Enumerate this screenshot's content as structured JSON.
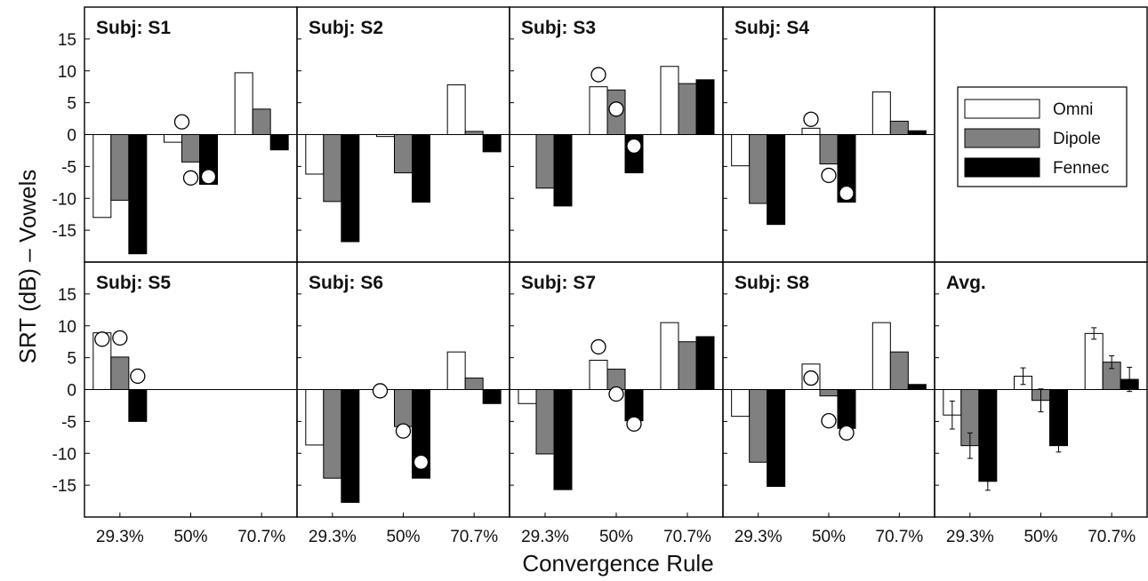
{
  "chart_data": {
    "type": "bar",
    "ylabel": "SRT (dB) – Vowels",
    "xlabel": "Convergence Rule",
    "categories": [
      "29.3%",
      "50%",
      "70.7%"
    ],
    "ylim": [
      -20,
      20
    ],
    "yticks": [
      -15,
      -10,
      -5,
      0,
      5,
      10,
      15
    ],
    "grid": false,
    "legend": {
      "placement": "top-right panel",
      "entries": [
        {
          "name": "Omni",
          "color": "#ffffff"
        },
        {
          "name": "Dipole",
          "color": "#808080"
        },
        {
          "name": "Fennec",
          "color": "#000000"
        }
      ]
    },
    "series_colors": {
      "Omni": "#ffffff",
      "Dipole": "#808080",
      "Fennec": "#000000"
    },
    "panels": [
      {
        "title": "Subj: S1",
        "series": [
          {
            "name": "Omni",
            "values": [
              -13.0,
              -1.2,
              9.7
            ]
          },
          {
            "name": "Dipole",
            "values": [
              -10.3,
              -4.3,
              4.0
            ]
          },
          {
            "name": "Fennec",
            "values": [
              -18.7,
              -7.8,
              -2.4
            ]
          }
        ],
        "markers": [
          {
            "category": "50%",
            "position": "Omni-Dipole",
            "value": 2.0,
            "fill": "white"
          },
          {
            "category": "50%",
            "position": "Dipole",
            "value": -6.8,
            "fill": "white"
          },
          {
            "category": "50%",
            "position": "Fennec",
            "value": -6.6,
            "fill": "white"
          }
        ]
      },
      {
        "title": "Subj: S2",
        "series": [
          {
            "name": "Omni",
            "values": [
              -6.2,
              -0.3,
              7.8
            ]
          },
          {
            "name": "Dipole",
            "values": [
              -10.5,
              -6.0,
              0.5
            ]
          },
          {
            "name": "Fennec",
            "values": [
              -16.8,
              -10.6,
              -2.7
            ]
          }
        ],
        "markers": []
      },
      {
        "title": "Subj: S3",
        "series": [
          {
            "name": "Omni",
            "values": [
              0,
              7.5,
              10.7
            ]
          },
          {
            "name": "Dipole",
            "values": [
              -8.4,
              7.0,
              8.0
            ]
          },
          {
            "name": "Fennec",
            "values": [
              -11.2,
              -6.0,
              8.6
            ]
          }
        ],
        "markers": [
          {
            "category": "50%",
            "position": "Omni",
            "value": 9.4,
            "fill": "white"
          },
          {
            "category": "50%",
            "position": "Dipole",
            "value": 4.0,
            "fill": "white"
          },
          {
            "category": "50%",
            "position": "Fennec",
            "value": -1.8,
            "fill": "white"
          }
        ]
      },
      {
        "title": "Subj: S4",
        "series": [
          {
            "name": "Omni",
            "values": [
              -4.9,
              1.0,
              6.7
            ]
          },
          {
            "name": "Dipole",
            "values": [
              -10.8,
              -4.6,
              2.1
            ]
          },
          {
            "name": "Fennec",
            "values": [
              -14.1,
              -10.6,
              0.6
            ]
          }
        ],
        "markers": [
          {
            "category": "50%",
            "position": "Omni",
            "value": 2.4,
            "fill": "white"
          },
          {
            "category": "50%",
            "position": "Dipole",
            "value": -6.4,
            "fill": "white"
          },
          {
            "category": "50%",
            "position": "Fennec",
            "value": -9.2,
            "fill": "white"
          }
        ]
      },
      {
        "title": "",
        "series": [],
        "markers": [],
        "is_legend": true
      },
      {
        "title": "Subj: S5",
        "series": [
          {
            "name": "Omni",
            "values": [
              8.9,
              0,
              0
            ]
          },
          {
            "name": "Dipole",
            "values": [
              5.1,
              0,
              0
            ]
          },
          {
            "name": "Fennec",
            "values": [
              -5.0,
              0,
              0
            ]
          }
        ],
        "markers": [
          {
            "category": "29.3%",
            "position": "Omni",
            "value": 7.9,
            "fill": "white"
          },
          {
            "category": "29.3%",
            "position": "Dipole",
            "value": 8.1,
            "fill": "white"
          },
          {
            "category": "29.3%",
            "position": "Fennec",
            "value": 2.1,
            "fill": "white"
          }
        ]
      },
      {
        "title": "Subj: S6",
        "series": [
          {
            "name": "Omni",
            "values": [
              -8.7,
              0,
              5.9
            ]
          },
          {
            "name": "Dipole",
            "values": [
              -13.9,
              -5.8,
              1.8
            ]
          },
          {
            "name": "Fennec",
            "values": [
              -17.7,
              -13.9,
              -2.2
            ]
          }
        ],
        "markers": [
          {
            "category": "50%",
            "position": "Omni-left",
            "value": -0.2,
            "fill": "white"
          },
          {
            "category": "50%",
            "position": "Dipole",
            "value": -6.5,
            "fill": "white"
          },
          {
            "category": "50%",
            "position": "Fennec",
            "value": -11.4,
            "fill": "white"
          }
        ]
      },
      {
        "title": "Subj: S7",
        "series": [
          {
            "name": "Omni",
            "values": [
              -2.2,
              4.6,
              10.5
            ]
          },
          {
            "name": "Dipole",
            "values": [
              -10.1,
              3.2,
              7.5
            ]
          },
          {
            "name": "Fennec",
            "values": [
              -15.7,
              -4.9,
              8.3
            ]
          }
        ],
        "markers": [
          {
            "category": "50%",
            "position": "Omni",
            "value": 6.7,
            "fill": "white"
          },
          {
            "category": "50%",
            "position": "Dipole",
            "value": -0.7,
            "fill": "white"
          },
          {
            "category": "50%",
            "position": "Fennec",
            "value": -5.4,
            "fill": "white"
          }
        ]
      },
      {
        "title": "Subj: S8",
        "series": [
          {
            "name": "Omni",
            "values": [
              -4.2,
              4.0,
              10.5
            ]
          },
          {
            "name": "Dipole",
            "values": [
              -11.4,
              -1.0,
              5.9
            ]
          },
          {
            "name": "Fennec",
            "values": [
              -15.2,
              -6.1,
              0.8
            ]
          }
        ],
        "markers": [
          {
            "category": "50%",
            "position": "Omni",
            "value": 1.8,
            "fill": "white"
          },
          {
            "category": "50%",
            "position": "Dipole",
            "value": -4.9,
            "fill": "white"
          },
          {
            "category": "50%",
            "position": "Fennec",
            "value": -6.8,
            "fill": "white"
          }
        ]
      },
      {
        "title": "Avg.",
        "series": [
          {
            "name": "Omni",
            "values": [
              -4.0,
              2.1,
              8.8
            ],
            "errors": [
              2.2,
              1.3,
              0.9
            ]
          },
          {
            "name": "Dipole",
            "values": [
              -8.8,
              -1.7,
              4.3
            ],
            "errors": [
              2.0,
              1.8,
              1.0
            ]
          },
          {
            "name": "Fennec",
            "values": [
              -14.4,
              -8.8,
              1.6
            ],
            "errors": [
              1.4,
              1.0,
              1.9
            ]
          }
        ],
        "markers": []
      }
    ]
  }
}
